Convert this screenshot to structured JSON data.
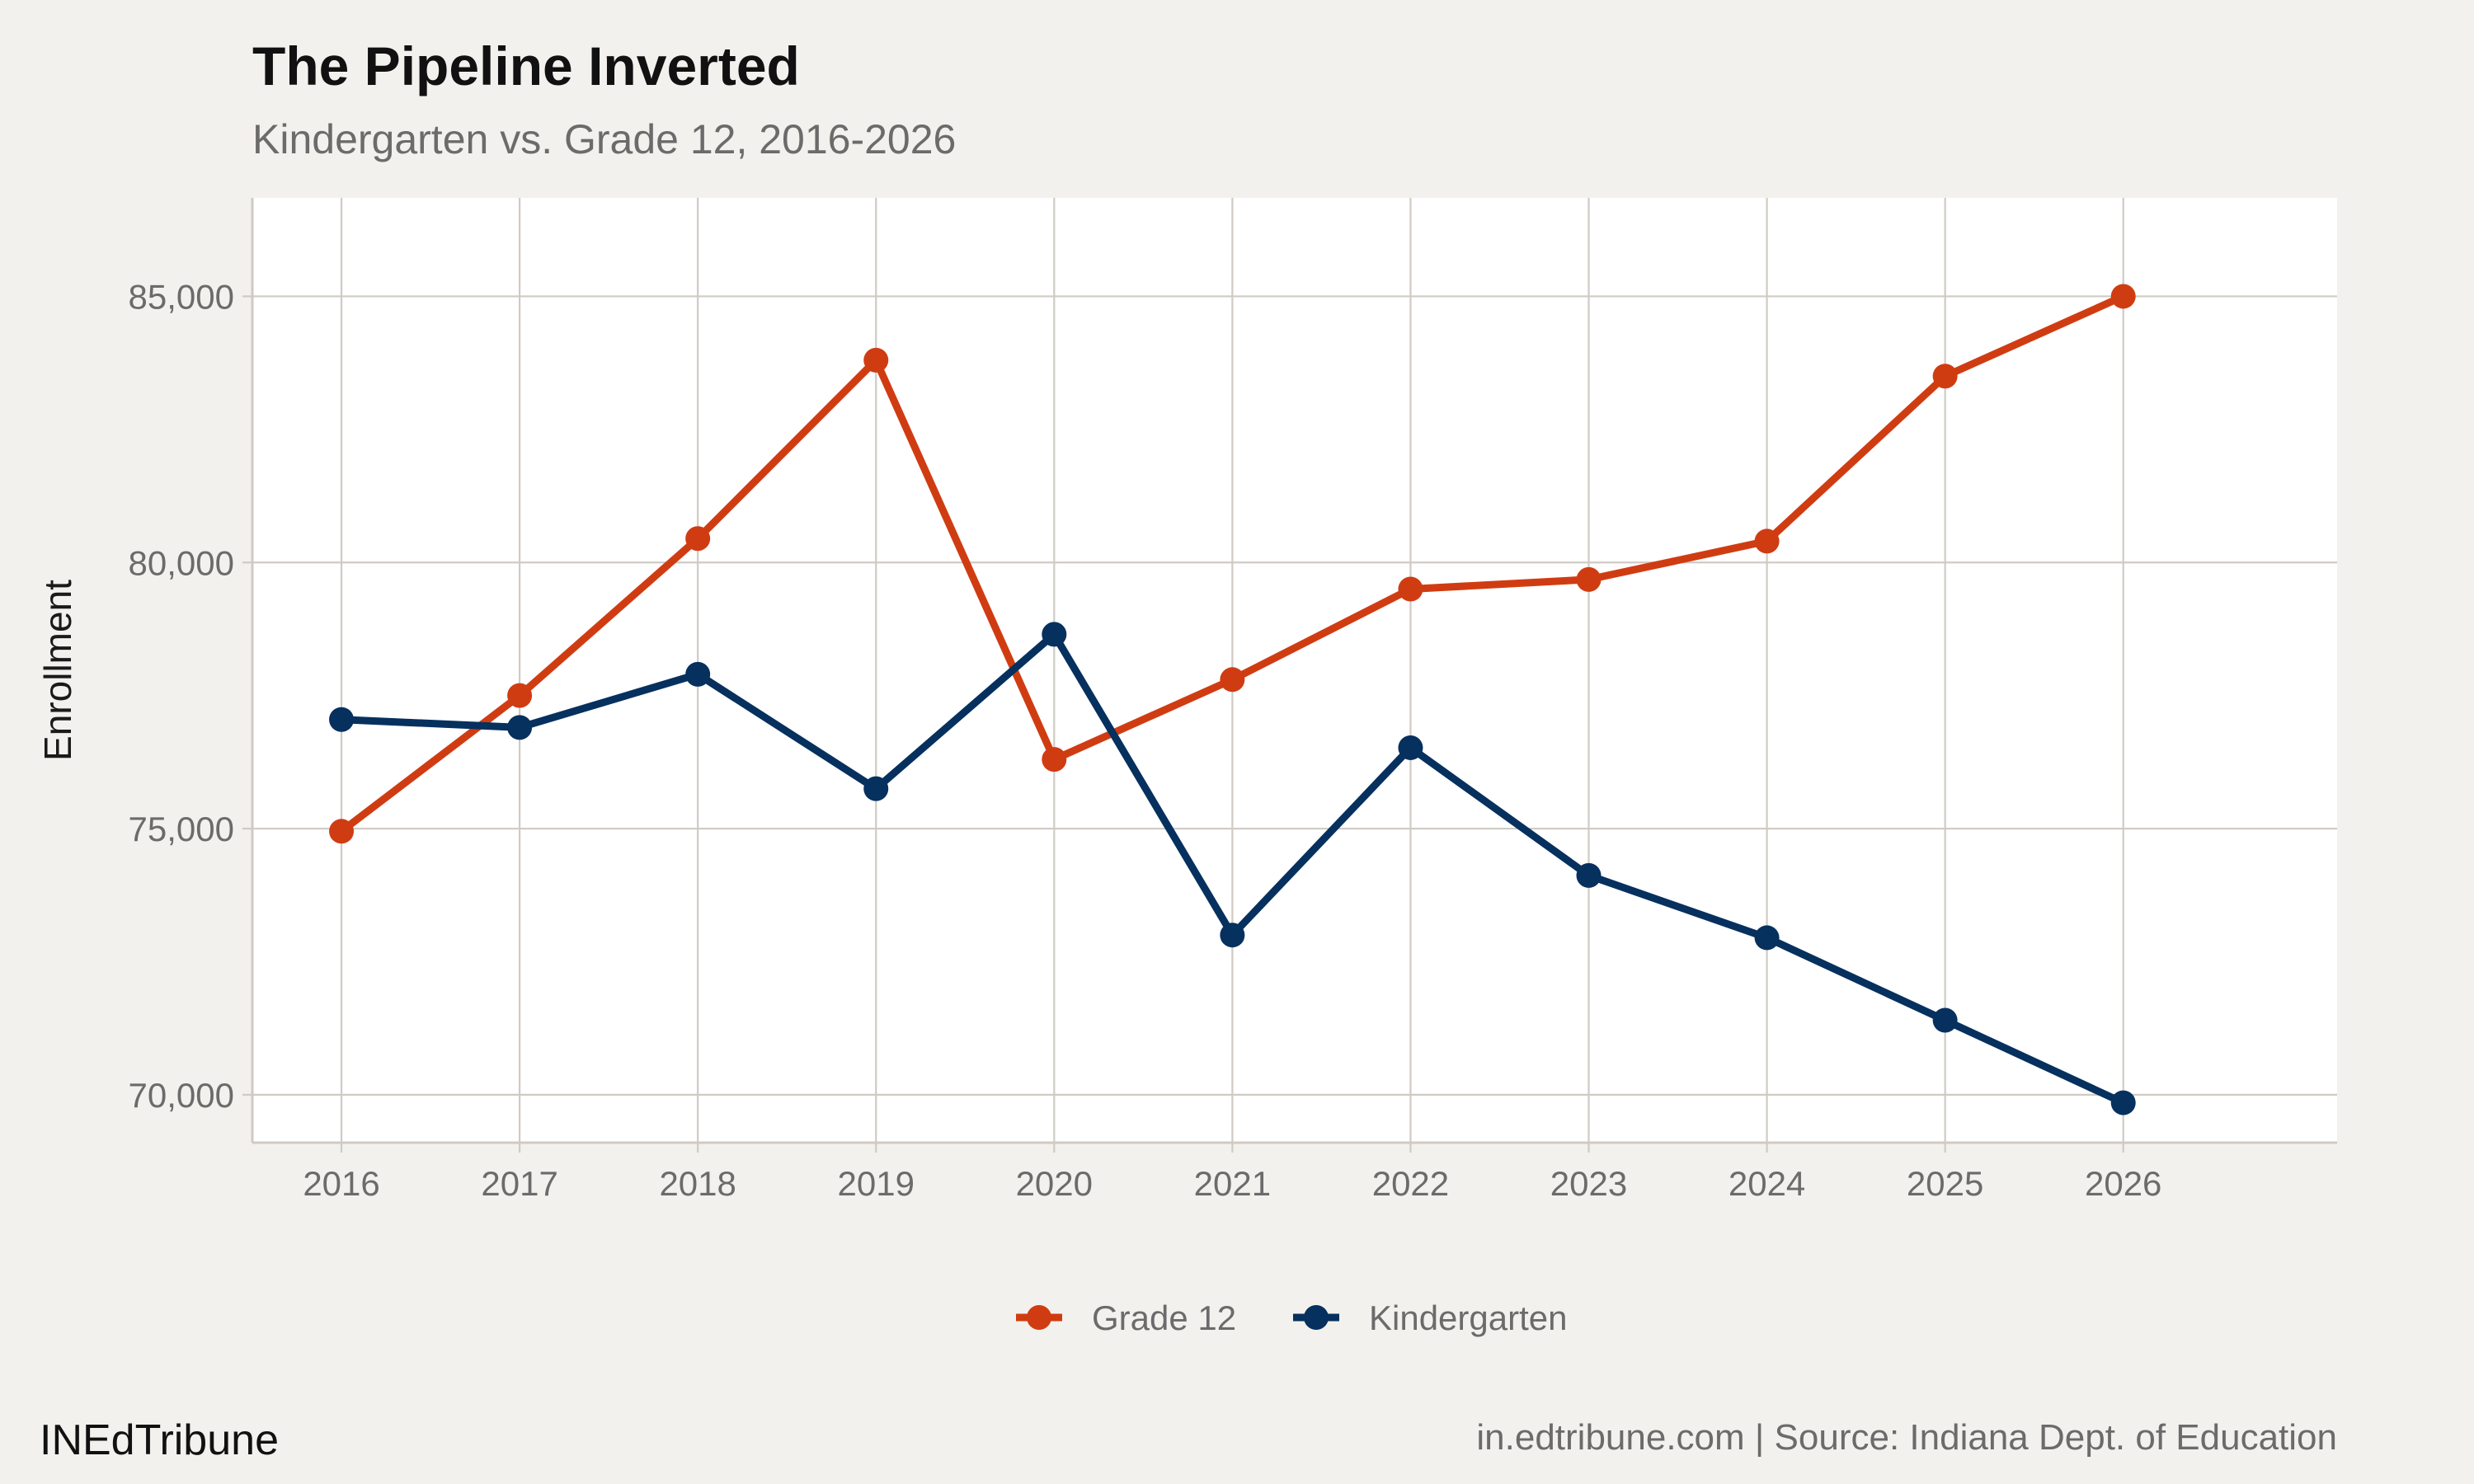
{
  "chart_data": {
    "type": "line",
    "title": "The Pipeline Inverted",
    "subtitle": "Kindergarten vs. Grade 12, 2016-2026",
    "xlabel": "",
    "ylabel": "Enrollment",
    "x": [
      2016,
      2017,
      2018,
      2019,
      2020,
      2021,
      2022,
      2023,
      2024,
      2025,
      2026
    ],
    "x_tick_labels": [
      "2016",
      "2017",
      "2018",
      "2019",
      "2020",
      "2021",
      "2022",
      "2023",
      "2024",
      "2025",
      "2026"
    ],
    "xlim": [
      2015.5,
      2027.2
    ],
    "y_ticks": [
      70000,
      75000,
      80000,
      85000
    ],
    "y_tick_labels": [
      "70,000",
      "75,000",
      "80,000",
      "85,000"
    ],
    "ylim": [
      69100,
      86850
    ],
    "grid": true,
    "legend_position": "bottom",
    "series": [
      {
        "name": "Grade 12",
        "color": "#d03c12",
        "values": [
          74950,
          77500,
          80450,
          83800,
          76300,
          77800,
          79500,
          79680,
          80400,
          83500,
          85000
        ]
      },
      {
        "name": "Kindergarten",
        "color": "#06305e",
        "values": [
          77050,
          76900,
          77900,
          75750,
          78650,
          73000,
          76520,
          74120,
          72950,
          71400,
          69850
        ]
      }
    ]
  },
  "footer": {
    "brand": "INEdTribune",
    "source": "in.edtribune.com | Source: Indiana Dept. of Education"
  },
  "colors": {
    "background": "#f3f1ed",
    "panel": "#ffffff",
    "grid": "#cfcbc4"
  }
}
